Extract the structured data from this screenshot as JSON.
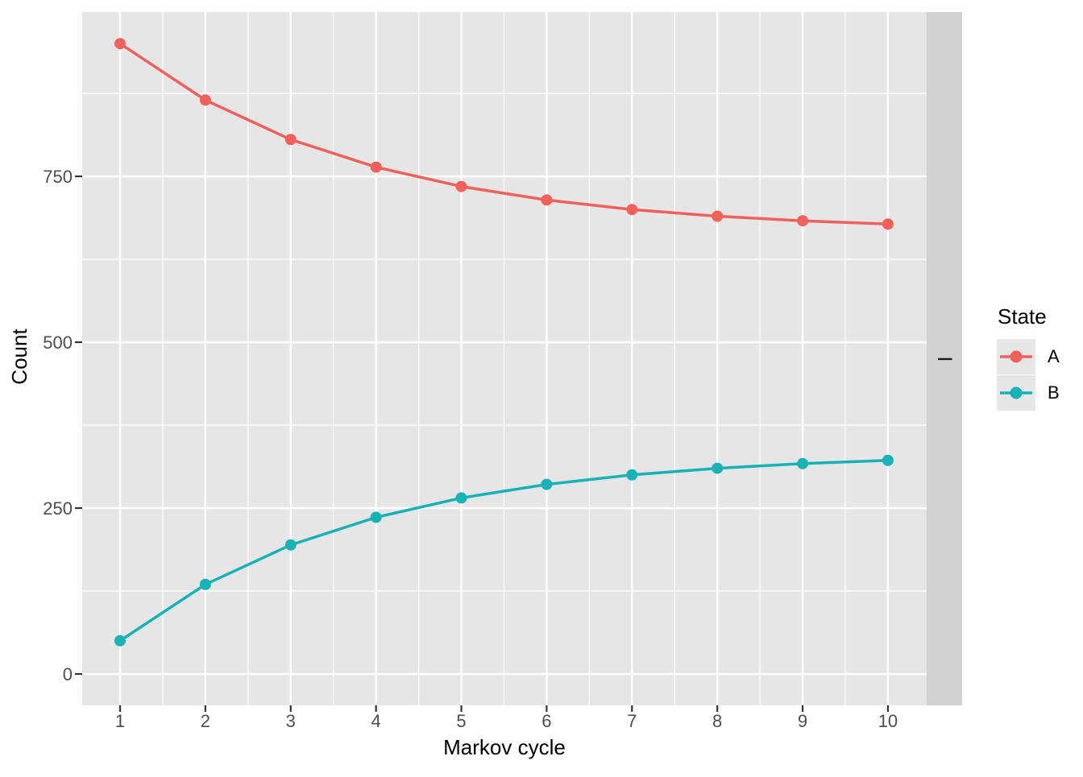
{
  "figure": {
    "facet_strip_label": "I"
  },
  "chart_data": {
    "type": "line",
    "title": "",
    "xlabel": "Markov cycle",
    "ylabel": "Count",
    "x": [
      1,
      2,
      3,
      4,
      5,
      6,
      7,
      8,
      9,
      10
    ],
    "series": [
      {
        "name": "A",
        "color": "#F1605B",
        "values": [
          950,
          865,
          805.5,
          763.9,
          734.7,
          714.3,
          700,
          690,
          683,
          678.1
        ]
      },
      {
        "name": "B",
        "color": "#17B2B6",
        "values": [
          50,
          135,
          194.5,
          236.1,
          265.3,
          285.7,
          300,
          310,
          317,
          321.9
        ]
      }
    ],
    "x_ticks": [
      1,
      2,
      3,
      4,
      5,
      6,
      7,
      8,
      9,
      10
    ],
    "x_tick_labels": [
      "1",
      "2",
      "3",
      "4",
      "5",
      "6",
      "7",
      "8",
      "9",
      "10"
    ],
    "y_ticks": [
      0,
      250,
      500,
      750
    ],
    "y_tick_labels": [
      "0",
      "250",
      "500",
      "750"
    ],
    "x_minor_ticks": [
      1.5,
      2.5,
      3.5,
      4.5,
      5.5,
      6.5,
      7.5,
      8.5,
      9.5
    ],
    "y_minor_ticks": [
      125,
      375,
      625,
      875
    ],
    "xlim": [
      0.556,
      10.454
    ],
    "ylim": [
      -47.3,
      997.6
    ],
    "grid": "major and minor, white on grey panel",
    "legend_position": "right",
    "legend_title": "State"
  },
  "theme": {
    "background": "#FFFFFF",
    "panel_bg": "#E6E6E6",
    "strip_bg": "#D1D1D1",
    "grid_color": "#FFFFFF",
    "tick_mark_color": "#333333",
    "axis_text_color": "#4D4D4D",
    "title_text_color": "#000000",
    "legend_key_bg": "#E6E6E6"
  }
}
